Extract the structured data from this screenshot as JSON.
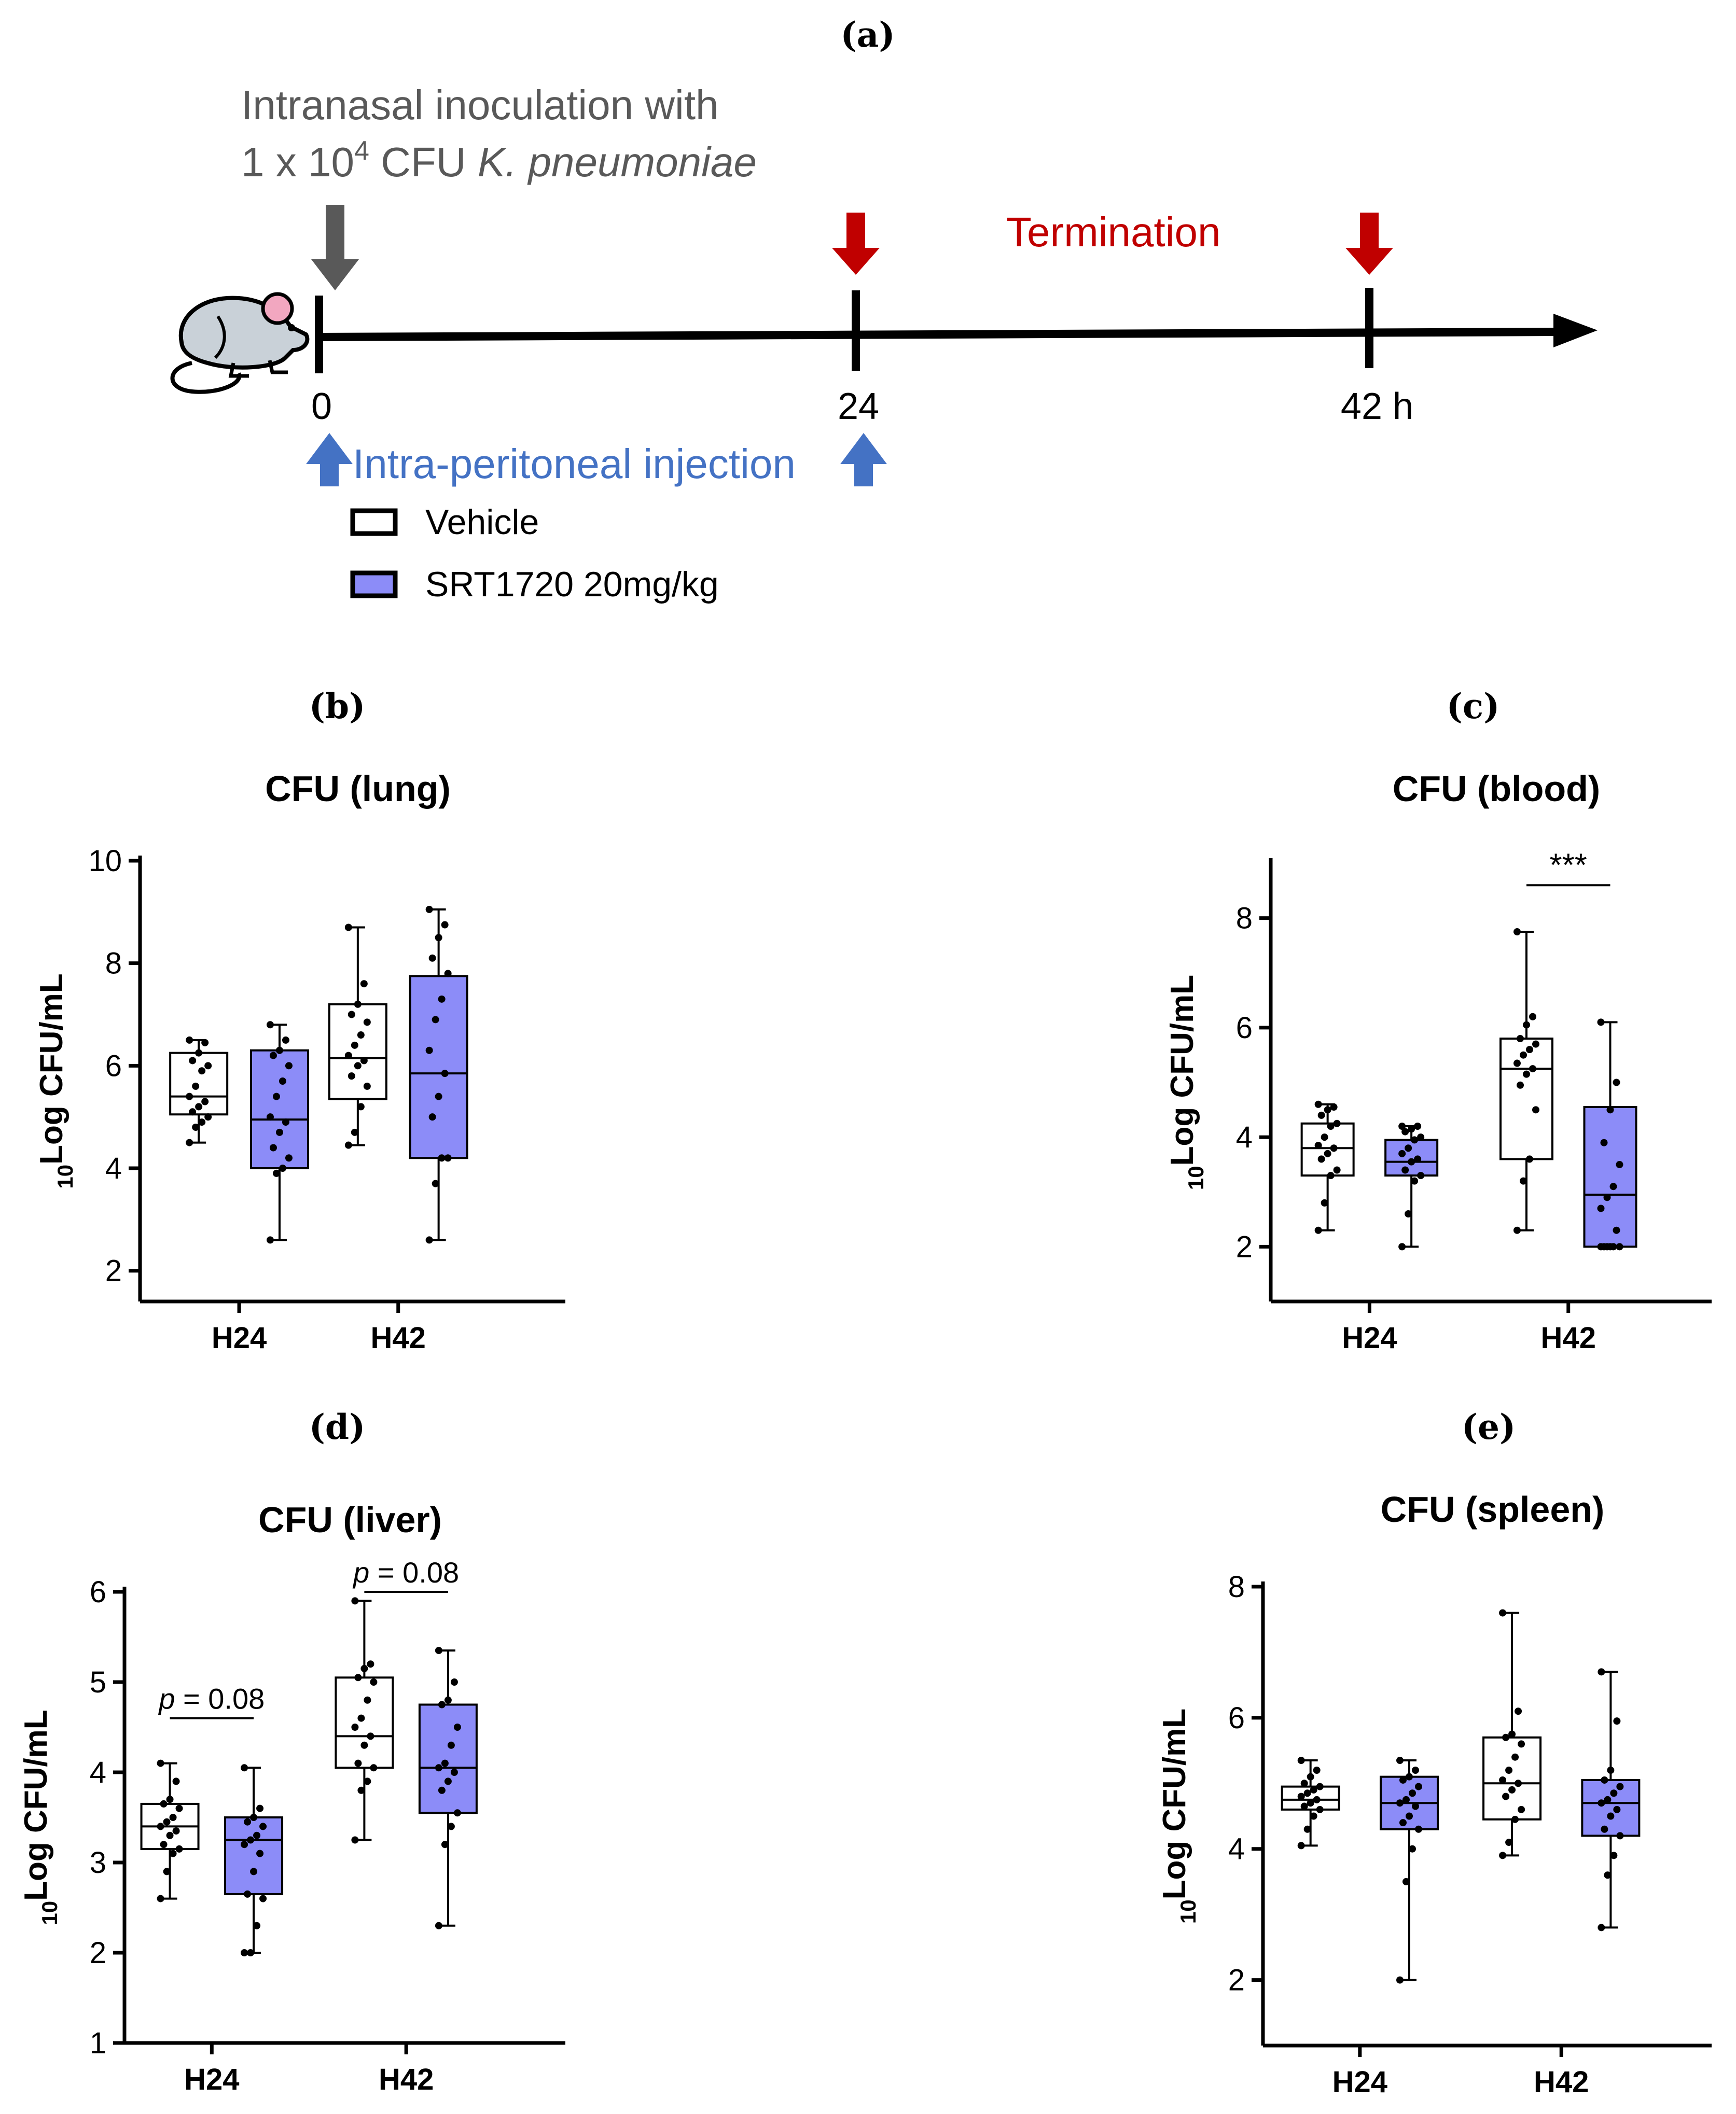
{
  "panel_labels": {
    "a": "(a)",
    "b": "(b)",
    "c": "(c)",
    "d": "(d)",
    "e": "(e)"
  },
  "timeline": {
    "inoculation_line1": "Intranasal inoculation with",
    "inoculation_line2_prefix": "1 x 10",
    "inoculation_line2_sup": "4",
    "inoculation_line2_mid": " CFU ",
    "inoculation_line2_organism": "K. pneumoniae",
    "termination": "Termination",
    "tick_0": "0",
    "tick_24": "24",
    "tick_42": "42 h",
    "injection": "Intra-peritoneal injection",
    "legend_vehicle": "Vehicle",
    "legend_srt": "SRT1720 20mg/kg",
    "colors": {
      "inoculation_arrow": "#595959",
      "termination": "#c00000",
      "injection": "#4472c4",
      "srt_fill": "#8c8cf8"
    }
  },
  "chart_data": [
    {
      "id": "b",
      "type": "box",
      "title": "CFU (lung)",
      "ylabel_sub": "10",
      "ylabel": "Log CFU/mL",
      "categories": [
        "H24",
        "H42"
      ],
      "ylim": [
        1.4,
        10
      ],
      "yticks": [
        2,
        4,
        6,
        8,
        10
      ],
      "series": [
        {
          "name": "Vehicle",
          "color": "#ffffff",
          "boxes": [
            {
              "min": 4.5,
              "q1": 5.05,
              "median": 5.4,
              "q3": 6.25,
              "max": 6.5,
              "points": [
                4.5,
                4.8,
                4.9,
                5.0,
                5.1,
                5.2,
                5.3,
                5.4,
                5.6,
                5.9,
                6.0,
                6.1,
                6.25,
                6.45,
                6.5
              ]
            },
            {
              "min": 4.45,
              "q1": 5.35,
              "median": 6.15,
              "q3": 7.2,
              "max": 8.7,
              "points": [
                4.45,
                4.7,
                5.2,
                5.6,
                5.8,
                6.0,
                6.1,
                6.2,
                6.4,
                6.6,
                6.85,
                7.0,
                7.2,
                7.6,
                8.7
              ]
            }
          ]
        },
        {
          "name": "SRT1720 20mg/kg",
          "color": "#8c8cf8",
          "boxes": [
            {
              "min": 2.6,
              "q1": 4.0,
              "median": 4.95,
              "q3": 6.3,
              "max": 6.8,
              "points": [
                2.6,
                3.9,
                4.0,
                4.2,
                4.4,
                4.7,
                4.9,
                5.0,
                5.4,
                5.7,
                6.0,
                6.2,
                6.3,
                6.5,
                6.8
              ]
            },
            {
              "min": 2.6,
              "q1": 4.2,
              "median": 5.85,
              "q3": 7.75,
              "max": 9.05,
              "points": [
                2.6,
                3.7,
                4.2,
                4.2,
                5.0,
                5.4,
                5.85,
                6.3,
                6.9,
                7.3,
                7.8,
                8.1,
                8.5,
                8.75,
                9.05
              ]
            }
          ]
        }
      ],
      "annotations": []
    },
    {
      "id": "c",
      "type": "box",
      "title": "CFU (blood)",
      "ylabel_sub": "10",
      "ylabel": "Log CFU/mL",
      "categories": [
        "H24",
        "H42"
      ],
      "ylim": [
        1.0,
        9.0
      ],
      "yticks": [
        2,
        4,
        6,
        8
      ],
      "series": [
        {
          "name": "Vehicle",
          "color": "#ffffff",
          "boxes": [
            {
              "min": 2.3,
              "q1": 3.3,
              "median": 3.8,
              "q3": 4.25,
              "max": 4.6,
              "points": [
                2.3,
                2.8,
                3.3,
                3.4,
                3.6,
                3.7,
                3.8,
                3.85,
                4.0,
                4.2,
                4.25,
                4.4,
                4.5,
                4.55,
                4.6
              ]
            },
            {
              "min": 2.3,
              "q1": 3.6,
              "median": 5.25,
              "q3": 5.8,
              "max": 7.75,
              "points": [
                2.3,
                3.2,
                3.6,
                4.5,
                4.95,
                5.15,
                5.25,
                5.35,
                5.5,
                5.6,
                5.7,
                5.8,
                6.05,
                6.2,
                7.75
              ]
            }
          ]
        },
        {
          "name": "SRT1720 20mg/kg",
          "color": "#8c8cf8",
          "boxes": [
            {
              "min": 2.0,
              "q1": 3.3,
              "median": 3.55,
              "q3": 3.95,
              "max": 4.2,
              "points": [
                2.0,
                2.6,
                3.2,
                3.3,
                3.4,
                3.55,
                3.6,
                3.7,
                3.8,
                3.95,
                4.0,
                4.1,
                4.15,
                4.2,
                4.2
              ]
            },
            {
              "min": 2.0,
              "q1": 2.0,
              "median": 2.95,
              "q3": 4.55,
              "max": 6.1,
              "points": [
                2.0,
                2.0,
                2.0,
                2.0,
                2.0,
                2.0,
                2.3,
                2.7,
                2.9,
                3.1,
                3.5,
                3.9,
                4.5,
                5.0,
                6.1
              ]
            }
          ]
        }
      ],
      "annotations": [
        {
          "category": 1,
          "text": "***",
          "y": 8.6
        }
      ]
    },
    {
      "id": "d",
      "type": "box",
      "title": "CFU (liver)",
      "ylabel_sub": "10",
      "ylabel": "Log CFU/mL",
      "categories": [
        "H24",
        "H42"
      ],
      "ylim": [
        1,
        6
      ],
      "yticks": [
        1,
        2,
        3,
        4,
        5,
        6
      ],
      "series": [
        {
          "name": "Vehicle",
          "color": "#ffffff",
          "boxes": [
            {
              "min": 2.6,
              "q1": 3.15,
              "median": 3.4,
              "q3": 3.65,
              "max": 4.1,
              "points": [
                2.6,
                2.9,
                3.1,
                3.15,
                3.2,
                3.3,
                3.35,
                3.4,
                3.45,
                3.5,
                3.6,
                3.65,
                3.7,
                3.9,
                4.1
              ]
            },
            {
              "min": 3.25,
              "q1": 4.05,
              "median": 4.4,
              "q3": 5.05,
              "max": 5.9,
              "points": [
                3.25,
                3.8,
                3.9,
                4.05,
                4.1,
                4.3,
                4.4,
                4.5,
                4.6,
                4.8,
                5.0,
                5.05,
                5.15,
                5.2,
                5.9
              ]
            }
          ]
        },
        {
          "name": "SRT1720 20mg/kg",
          "color": "#8c8cf8",
          "boxes": [
            {
              "min": 2.0,
              "q1": 2.65,
              "median": 3.25,
              "q3": 3.5,
              "max": 4.05,
              "points": [
                2.0,
                2.0,
                2.3,
                2.6,
                2.65,
                2.9,
                3.1,
                3.2,
                3.25,
                3.3,
                3.4,
                3.45,
                3.5,
                3.6,
                4.05
              ]
            },
            {
              "min": 2.3,
              "q1": 3.55,
              "median": 4.05,
              "q3": 4.75,
              "max": 5.35,
              "points": [
                2.3,
                3.2,
                3.4,
                3.55,
                3.8,
                3.9,
                4.0,
                4.05,
                4.1,
                4.3,
                4.5,
                4.75,
                4.8,
                5.0,
                5.35
              ]
            }
          ]
        }
      ],
      "annotations": [
        {
          "category": 0,
          "text": "p = 0.08",
          "italic_prefix": "p",
          "rest": " = 0.08",
          "y": 4.6
        },
        {
          "category": 1,
          "text": "p = 0.08",
          "italic_prefix": "p",
          "rest": " = 0.08",
          "y": 6.0
        }
      ]
    },
    {
      "id": "e",
      "type": "box",
      "title": "CFU (spleen)",
      "ylabel_sub": "10",
      "ylabel": "Log CFU/mL",
      "categories": [
        "H24",
        "H42"
      ],
      "ylim": [
        1.0,
        8.0
      ],
      "yticks": [
        2,
        4,
        6,
        8
      ],
      "series": [
        {
          "name": "Vehicle",
          "color": "#ffffff",
          "boxes": [
            {
              "min": 4.05,
              "q1": 4.6,
              "median": 4.75,
              "q3": 4.95,
              "max": 5.35,
              "points": [
                4.05,
                4.3,
                4.5,
                4.6,
                4.65,
                4.7,
                4.75,
                4.8,
                4.85,
                4.9,
                4.95,
                5.0,
                5.1,
                5.2,
                5.35
              ]
            },
            {
              "min": 3.9,
              "q1": 4.45,
              "median": 5.0,
              "q3": 5.7,
              "max": 7.6,
              "points": [
                3.9,
                4.1,
                4.45,
                4.6,
                4.8,
                4.9,
                5.0,
                5.05,
                5.2,
                5.4,
                5.6,
                5.7,
                5.75,
                6.1,
                7.6
              ]
            }
          ]
        },
        {
          "name": "SRT1720 20mg/kg",
          "color": "#8c8cf8",
          "boxes": [
            {
              "min": 2.0,
              "q1": 4.3,
              "median": 4.7,
              "q3": 5.1,
              "max": 5.35,
              "points": [
                2.0,
                3.5,
                4.0,
                4.3,
                4.4,
                4.5,
                4.65,
                4.7,
                4.75,
                4.85,
                4.95,
                5.05,
                5.1,
                5.2,
                5.35
              ]
            },
            {
              "min": 2.8,
              "q1": 4.2,
              "median": 4.7,
              "q3": 5.05,
              "max": 6.7,
              "points": [
                2.8,
                3.6,
                3.9,
                4.2,
                4.3,
                4.5,
                4.6,
                4.7,
                4.75,
                4.85,
                4.95,
                5.05,
                5.2,
                5.95,
                6.7
              ]
            }
          ]
        }
      ],
      "annotations": []
    }
  ]
}
